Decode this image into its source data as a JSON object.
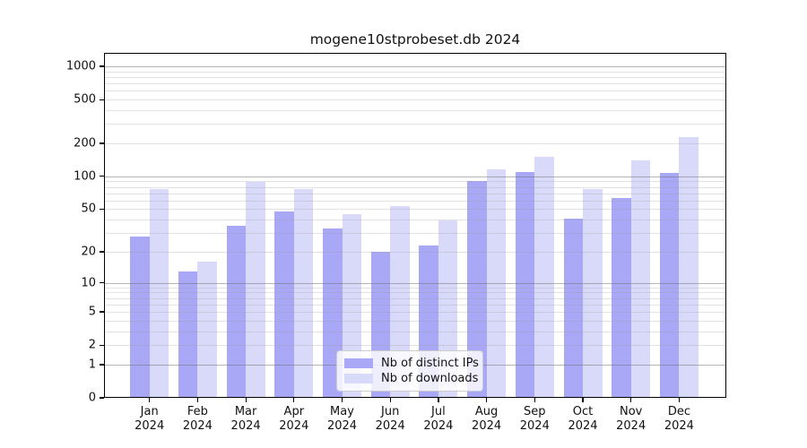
{
  "chart_data": {
    "type": "bar",
    "title": "mogene10stprobeset.db 2024",
    "categories": [
      "Jan",
      "Feb",
      "Mar",
      "Apr",
      "May",
      "Jun",
      "Jul",
      "Aug",
      "Sep",
      "Oct",
      "Nov",
      "Dec"
    ],
    "category_sublabel": "2024",
    "series": [
      {
        "name": "Nb of distinct IPs",
        "color": "#a8a8f6",
        "values": [
          28,
          13,
          35,
          48,
          33,
          20,
          23,
          91,
          110,
          41,
          63,
          108
        ]
      },
      {
        "name": "Nb of downloads",
        "color": "#d9d9fa",
        "values": [
          77,
          16,
          89,
          77,
          45,
          53,
          39,
          116,
          152,
          77,
          140,
          229
        ]
      }
    ],
    "yscale": "log1p",
    "ylim": [
      0,
      1300
    ],
    "yticks": [
      0,
      1,
      2,
      5,
      10,
      20,
      50,
      100,
      200,
      500,
      1000
    ],
    "grid": "horizontal major (decades) + minor (log subdivisions)",
    "legend_position": "bottom-center"
  },
  "colors": {
    "background": "#ffffff",
    "major_grid": "#b3b3b3",
    "minor_grid": "#e7e7e7",
    "axis_frame": "#000000",
    "text": "#111111",
    "legend_border": "#cccccc"
  }
}
